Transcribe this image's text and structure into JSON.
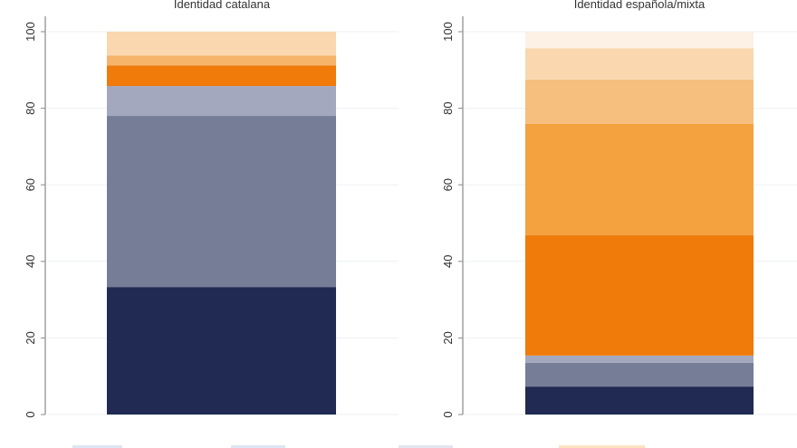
{
  "chart_data": [
    {
      "type": "bar",
      "stacked": true,
      "title": "Identidad catalana",
      "xlabel": "",
      "ylabel": "",
      "ylim": [
        0,
        100
      ],
      "yticks": [
        "0",
        "20",
        "40",
        "60",
        "80",
        "100"
      ],
      "grid": true,
      "segments": [
        {
          "value": 33.3,
          "color": "#202a52"
        },
        {
          "value": 44.7,
          "color": "#757d97"
        },
        {
          "value": 7.8,
          "color": "#a3a8be"
        },
        {
          "value": 5.4,
          "color": "#f07a0a"
        },
        {
          "value": 2.6,
          "color": "#f6b46a"
        },
        {
          "value": 6.2,
          "color": "#fad7af"
        }
      ]
    },
    {
      "type": "bar",
      "stacked": true,
      "title": "Identidad española/mixta",
      "xlabel": "",
      "ylabel": "",
      "ylim": [
        0,
        100
      ],
      "yticks": [
        "0",
        "20",
        "40",
        "60",
        "80",
        "100"
      ],
      "grid": true,
      "segments": [
        {
          "value": 7.3,
          "color": "#202a52"
        },
        {
          "value": 6.2,
          "color": "#757d97"
        },
        {
          "value": 1.9,
          "color": "#a3a8be"
        },
        {
          "value": 31.4,
          "color": "#f07a0a"
        },
        {
          "value": 29.1,
          "color": "#f3a23f"
        },
        {
          "value": 11.6,
          "color": "#f6bf7e"
        },
        {
          "value": 8.2,
          "color": "#fad7af"
        },
        {
          "value": 4.3,
          "color": "#fdf0e4"
        }
      ]
    }
  ],
  "legend": {
    "placement": "bottom",
    "swatch_colors": [
      "#dde6f2",
      "#dde6f2",
      "#e3e6ee",
      "#fbe3c2"
    ]
  }
}
